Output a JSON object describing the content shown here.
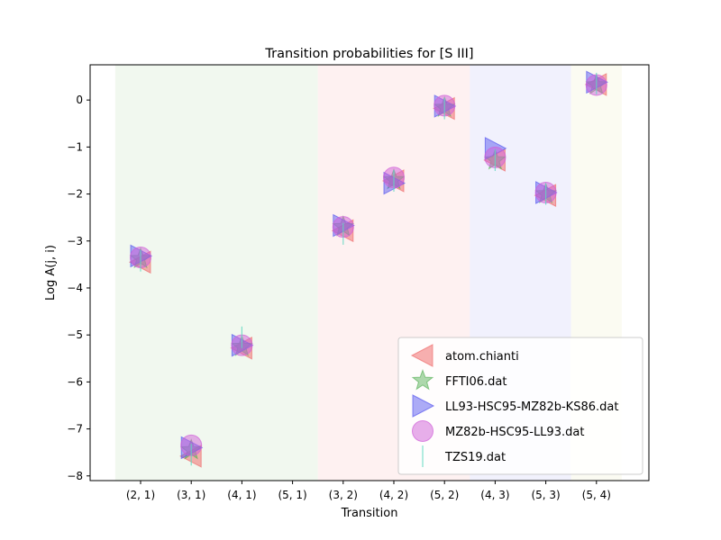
{
  "chart_data": {
    "type": "scatter",
    "title": "Transition probabilities for [S III]",
    "xlabel": "Transition",
    "ylabel": "Log A(j, i)",
    "categories": [
      "(2, 1)",
      "(3, 1)",
      "(4, 1)",
      "(5, 1)",
      "(3, 2)",
      "(4, 2)",
      "(5, 2)",
      "(4, 3)",
      "(5, 3)",
      "(5, 4)"
    ],
    "ylim": [
      -8.1,
      0.75
    ],
    "yticks": [
      0,
      -1,
      -2,
      -3,
      -4,
      -5,
      -6,
      -7,
      -8
    ],
    "ytick_labels": [
      "0",
      "−1",
      "−2",
      "−3",
      "−4",
      "−5",
      "−6",
      "−7",
      "−8"
    ],
    "grid": false,
    "legend_position": "lower-right",
    "bands": [
      {
        "from": "(2, 1)",
        "to": "(5, 1)",
        "color": "#e8f4e4"
      },
      {
        "from": "(3, 2)",
        "to": "(5, 2)",
        "color": "#fde8e8"
      },
      {
        "from": "(4, 3)",
        "to": "(5, 3)",
        "color": "#e8e8fc"
      },
      {
        "from": "(5, 4)",
        "to": "(5, 4)",
        "color": "#f8f8ea"
      }
    ],
    "series": [
      {
        "name": "atom.chianti",
        "marker": "triangle-left",
        "color": "#f07070",
        "values": [
          -3.45,
          -7.58,
          -5.28,
          null,
          -2.78,
          -1.72,
          -0.18,
          -1.28,
          -2.03,
          0.33
        ]
      },
      {
        "name": "FFTI06.dat",
        "marker": "star",
        "color": "#5cb35c",
        "values": [
          -3.38,
          -7.45,
          -5.25,
          null,
          -2.7,
          -1.7,
          -0.16,
          -1.28,
          -2.0,
          0.32
        ]
      },
      {
        "name": "LL93-HSC95-MZ82b-KS86.dat",
        "marker": "triangle-right",
        "color": "#5a5af0",
        "values": [
          -3.32,
          -7.4,
          -5.22,
          null,
          -2.67,
          -1.77,
          -0.13,
          -1.03,
          -1.97,
          0.38
        ]
      },
      {
        "name": "MZ82b-HSC95-LL93.dat",
        "marker": "circle",
        "color": "#d060d8",
        "values": [
          -3.35,
          -7.35,
          -5.22,
          null,
          -2.7,
          -1.65,
          -0.12,
          -1.22,
          -1.97,
          0.32
        ]
      },
      {
        "name": "TZS19.dat",
        "marker": "vline",
        "color": "#60d8c0",
        "values": [
          -3.42,
          -7.55,
          -5.05,
          null,
          -2.85,
          -1.72,
          -0.18,
          -1.28,
          -2.0,
          0.35
        ]
      }
    ]
  }
}
